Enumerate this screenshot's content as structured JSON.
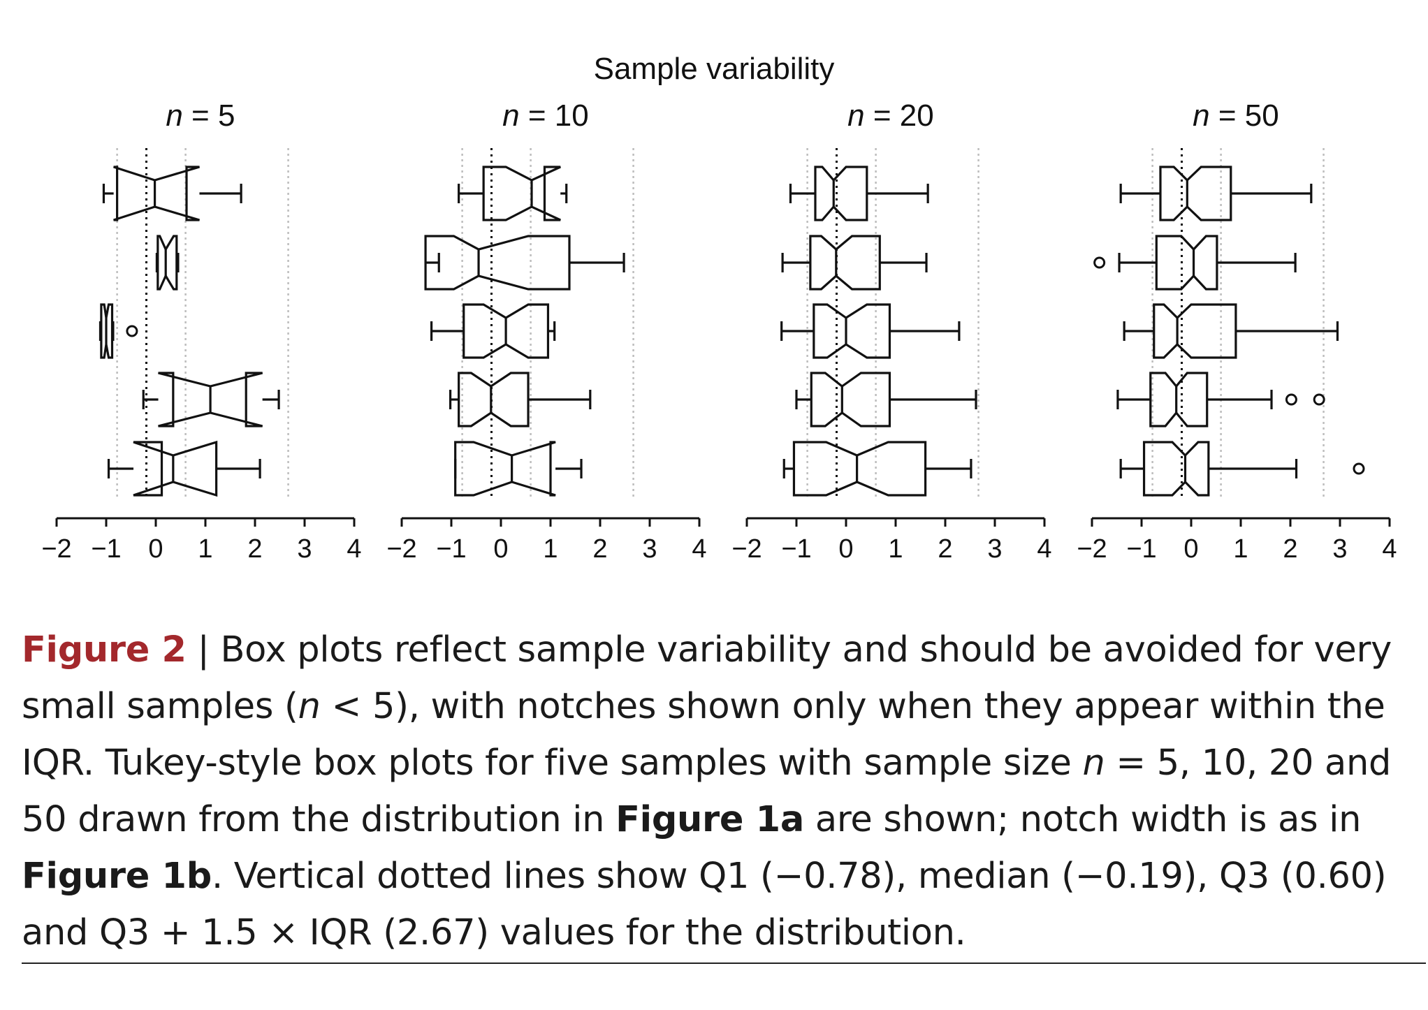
{
  "chart_data": {
    "type": "box",
    "title": "Sample variability",
    "x_range": [
      -2,
      4
    ],
    "x_ticks": [
      -2,
      -1,
      0,
      1,
      2,
      3,
      4
    ],
    "x_tick_labels": [
      "−2",
      "−1",
      "0",
      "1",
      "2",
      "3",
      "4"
    ],
    "reference_lines": [
      -0.78,
      -0.19,
      0.6,
      2.67
    ],
    "panels": [
      {
        "label": "n = 5",
        "boxes": [
          {
            "wlo": -1.05,
            "q1": -0.78,
            "med": -0.02,
            "q3": 0.62,
            "whi": 1.72,
            "nlo": -0.85,
            "nhi": 0.88,
            "outliers": []
          },
          {
            "wlo": 0.02,
            "q1": 0.04,
            "med": 0.2,
            "q3": 0.42,
            "whi": 0.45,
            "nlo": 0.08,
            "nhi": 0.36,
            "outliers": []
          },
          {
            "wlo": -1.12,
            "q1": -1.1,
            "med": -1.0,
            "q3": -0.88,
            "whi": -0.86,
            "nlo": -1.04,
            "nhi": -0.95,
            "outliers": [
              -0.48
            ]
          },
          {
            "wlo": -0.25,
            "q1": 0.35,
            "med": 1.1,
            "q3": 1.82,
            "whi": 2.48,
            "nlo": 0.05,
            "nhi": 2.15,
            "outliers": []
          },
          {
            "wlo": -0.95,
            "q1": 0.12,
            "med": 0.35,
            "q3": 1.22,
            "whi": 2.1,
            "nlo": -0.45,
            "nhi": 1.22,
            "outliers": []
          }
        ]
      },
      {
        "label": "n = 10",
        "boxes": [
          {
            "wlo": -0.85,
            "q1": -0.35,
            "med": 0.62,
            "q3": 0.88,
            "whi": 1.32,
            "nlo": 0.1,
            "nhi": 1.2,
            "outliers": []
          },
          {
            "wlo": -1.25,
            "q1": -1.52,
            "med": -0.45,
            "q3": 1.38,
            "whi": 2.48,
            "nlo": -0.95,
            "nhi": 0.55,
            "outliers": []
          },
          {
            "wlo": -1.4,
            "q1": -0.75,
            "med": 0.1,
            "q3": 0.95,
            "whi": 1.08,
            "nlo": -0.35,
            "nhi": 0.55,
            "outliers": []
          },
          {
            "wlo": -1.02,
            "q1": -0.85,
            "med": -0.2,
            "q3": 0.55,
            "whi": 1.8,
            "nlo": -0.6,
            "nhi": 0.2,
            "outliers": []
          },
          {
            "wlo": -0.92,
            "q1": -0.92,
            "med": 0.22,
            "q3": 1.0,
            "whi": 1.62,
            "nlo": -0.55,
            "nhi": 1.1,
            "outliers": []
          }
        ]
      },
      {
        "label": "n = 20",
        "boxes": [
          {
            "wlo": -1.12,
            "q1": -0.62,
            "med": -0.25,
            "q3": 0.42,
            "whi": 1.65,
            "nlo": -0.48,
            "nhi": 0.0,
            "outliers": []
          },
          {
            "wlo": -1.28,
            "q1": -0.72,
            "med": -0.2,
            "q3": 0.68,
            "whi": 1.62,
            "nlo": -0.5,
            "nhi": 0.12,
            "outliers": []
          },
          {
            "wlo": -1.3,
            "q1": -0.65,
            "med": 0.0,
            "q3": 0.88,
            "whi": 2.28,
            "nlo": -0.38,
            "nhi": 0.42,
            "outliers": []
          },
          {
            "wlo": -1.0,
            "q1": -0.7,
            "med": -0.08,
            "q3": 0.88,
            "whi": 2.62,
            "nlo": -0.42,
            "nhi": 0.3,
            "outliers": []
          },
          {
            "wlo": -1.25,
            "q1": -1.05,
            "med": 0.22,
            "q3": 1.6,
            "whi": 2.52,
            "nlo": -0.4,
            "nhi": 0.85,
            "outliers": []
          }
        ]
      },
      {
        "label": "n = 50",
        "boxes": [
          {
            "wlo": -1.42,
            "q1": -0.62,
            "med": -0.08,
            "q3": 0.8,
            "whi": 2.42,
            "nlo": -0.35,
            "nhi": 0.2,
            "outliers": []
          },
          {
            "wlo": -1.45,
            "q1": -0.7,
            "med": 0.05,
            "q3": 0.52,
            "whi": 2.1,
            "nlo": -0.2,
            "nhi": 0.3,
            "outliers": [
              -1.85
            ]
          },
          {
            "wlo": -1.35,
            "q1": -0.75,
            "med": -0.28,
            "q3": 0.9,
            "whi": 2.95,
            "nlo": -0.55,
            "nhi": 0.0,
            "outliers": []
          },
          {
            "wlo": -1.48,
            "q1": -0.82,
            "med": -0.3,
            "q3": 0.32,
            "whi": 1.62,
            "nlo": -0.52,
            "nhi": -0.08,
            "outliers": [
              2.02,
              2.58
            ]
          },
          {
            "wlo": -1.42,
            "q1": -0.95,
            "med": -0.12,
            "q3": 0.35,
            "whi": 2.12,
            "nlo": -0.38,
            "nhi": 0.14,
            "outliers": [
              3.38
            ]
          }
        ]
      }
    ]
  },
  "caption": {
    "label": "Figure 2",
    "separator": " | ",
    "parts": [
      {
        "t": "Box plots reflect sample variability and should be avoided for very small samples (",
        "s": ""
      },
      {
        "t": "n",
        "s": "i"
      },
      {
        "t": " < 5), with notches shown only when they appear within the IQR. Tukey-style box plots for five samples with sample size ",
        "s": ""
      },
      {
        "t": "n",
        "s": "i"
      },
      {
        "t": " = 5, 10, 20 and 50 drawn from the distribution in ",
        "s": ""
      },
      {
        "t": "Figure 1a",
        "s": "b"
      },
      {
        "t": " are shown; notch width is as in ",
        "s": ""
      },
      {
        "t": "Figure 1b",
        "s": "b"
      },
      {
        "t": ". Vertical dotted lines show Q1 (−0.78), median (−0.19), Q3 (0.60) and Q3 + 1.5 × IQR (2.67) values for the distribution.",
        "s": ""
      }
    ]
  }
}
